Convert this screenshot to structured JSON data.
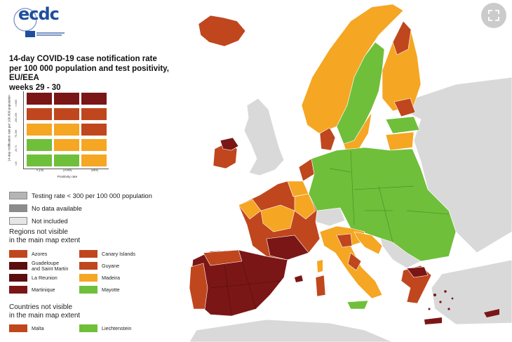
{
  "title": {
    "line1": "14-day COVID-19 case notification rate",
    "line2": "per 100 000 population and test positivity, EU/EEA",
    "line3": "weeks 29 - 30"
  },
  "logo": {
    "text": "ecdc"
  },
  "matrix": {
    "y_axis_label": "14-day notification rate per 100 000 population",
    "y_ticks": [
      ">=500",
      "200-499",
      "75-199",
      "20-74",
      "<20"
    ],
    "x_ticks": [
      "<1%",
      "1<4%",
      "≥4%"
    ],
    "x_axis_label": "Positivity rate",
    "rows": [
      [
        "#7b1616",
        "#7b1616",
        "#7b1616"
      ],
      [
        "#c0461e",
        "#c0461e",
        "#c0461e"
      ],
      [
        "#f5a623",
        "#f5a623",
        "#c0461e"
      ],
      [
        "#6fbf3a",
        "#f5a623",
        "#f5a623"
      ],
      [
        "#6fbf3a",
        "#6fbf3a",
        "#f5a623"
      ]
    ]
  },
  "legend": {
    "testing_rate": "Testing rate < 300 per 100 000 population",
    "no_data": "No data available",
    "not_included": "Not included"
  },
  "regions_heading": "Regions not visible\nin the main map extent",
  "regions": [
    {
      "label": "Azores",
      "color": "#c0461e"
    },
    {
      "label": "Canary Islands",
      "color": "#c0461e"
    },
    {
      "label": "Guadeloupe\nand Saint Martin",
      "color": "#5a0e0e"
    },
    {
      "label": "Guyane",
      "color": "#c0461e"
    },
    {
      "label": "La Reunion",
      "color": "#5a0e0e"
    },
    {
      "label": "Madeira",
      "color": "#f5a623"
    },
    {
      "label": "Martinique",
      "color": "#7b1616"
    },
    {
      "label": "Mayotte",
      "color": "#6fbf3a"
    }
  ],
  "countries_heading": "Countries not visible\nin the main map extent",
  "countries": [
    {
      "label": "Malta",
      "color": "#c0461e"
    },
    {
      "label": "Liechtenstein",
      "color": "#6fbf3a"
    }
  ],
  "colors": {
    "dark_red": "#7b1616",
    "red": "#c0461e",
    "orange": "#f5a623",
    "green": "#6fbf3a",
    "grey_not_included": "#d9d9d9",
    "sea": "#ffffff"
  },
  "icons": {
    "expand": "expand-icon"
  }
}
